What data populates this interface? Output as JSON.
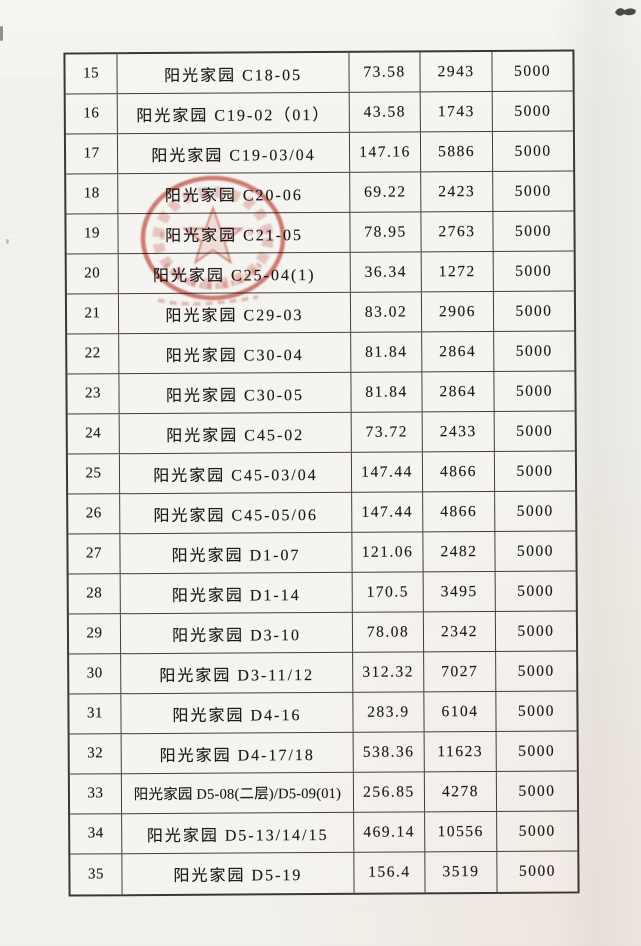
{
  "document": {
    "kind": "scanned table page",
    "seal": {
      "shape": "circular-red-seal-with-star",
      "color": "#bf3c2c",
      "text_legible": false
    },
    "corner_mark": "ink-smudge"
  },
  "table": {
    "rows": [
      [
        "15",
        "阳光家园 C18-05",
        "73.58",
        "2943",
        "5000"
      ],
      [
        "16",
        "阳光家园 C19-02（01）",
        "43.58",
        "1743",
        "5000"
      ],
      [
        "17",
        "阳光家园 C19-03/04",
        "147.16",
        "5886",
        "5000"
      ],
      [
        "18",
        "阳光家园 C20-06",
        "69.22",
        "2423",
        "5000"
      ],
      [
        "19",
        "阳光家园 C21-05",
        "78.95",
        "2763",
        "5000"
      ],
      [
        "20",
        "阳光家园 C25-04(1)",
        "36.34",
        "1272",
        "5000"
      ],
      [
        "21",
        "阳光家园 C29-03",
        "83.02",
        "2906",
        "5000"
      ],
      [
        "22",
        "阳光家园 C30-04",
        "81.84",
        "2864",
        "5000"
      ],
      [
        "23",
        "阳光家园 C30-05",
        "81.84",
        "2864",
        "5000"
      ],
      [
        "24",
        "阳光家园 C45-02",
        "73.72",
        "2433",
        "5000"
      ],
      [
        "25",
        "阳光家园 C45-03/04",
        "147.44",
        "4866",
        "5000"
      ],
      [
        "26",
        "阳光家园 C45-05/06",
        "147.44",
        "4866",
        "5000"
      ],
      [
        "27",
        "阳光家园 D1-07",
        "121.06",
        "2482",
        "5000"
      ],
      [
        "28",
        "阳光家园 D1-14",
        "170.5",
        "3495",
        "5000"
      ],
      [
        "29",
        "阳光家园 D3-10",
        "78.08",
        "2342",
        "5000"
      ],
      [
        "30",
        "阳光家园 D3-11/12",
        "312.32",
        "7027",
        "5000"
      ],
      [
        "31",
        "阳光家园 D4-16",
        "283.9",
        "6104",
        "5000"
      ],
      [
        "32",
        "阳光家园 D4-17/18",
        "538.36",
        "11623",
        "5000"
      ],
      [
        "33",
        "阳光家园 D5-08(二层)/D5-09(01)",
        "256.85",
        "4278",
        "5000"
      ],
      [
        "34",
        "阳光家园 D5-13/14/15",
        "469.14",
        "10556",
        "5000"
      ],
      [
        "35",
        "阳光家园 D5-19",
        "156.4",
        "3519",
        "5000"
      ]
    ]
  }
}
